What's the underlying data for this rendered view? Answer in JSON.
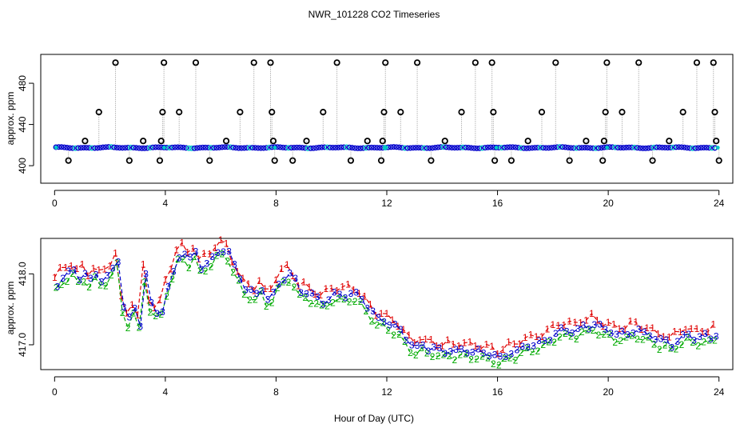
{
  "title": "NWR_101228  CO2 Timeseries",
  "xlabel": "Hour of Day (UTC)",
  "colors": {
    "black": "#000000",
    "blue": "#0000cc",
    "cyan": "#00c8c8",
    "red": "#e00000",
    "green": "#00aa00",
    "dashed_blue": "#0000cc",
    "gray": "#999999"
  },
  "chart_data": [
    {
      "type": "scatter",
      "panel": "top",
      "ylabel": "approx. ppm",
      "xlim": [
        -0.5,
        24.5
      ],
      "ylim": [
        383,
        508
      ],
      "xticks": [
        0,
        4,
        8,
        12,
        16,
        20,
        24
      ],
      "yticks": [
        400,
        440,
        480
      ],
      "baseline_ppm": 417.5,
      "spike_values_ppm": [
        500,
        452,
        424,
        405
      ],
      "spikes": [
        {
          "x": 0.5,
          "y": 405
        },
        {
          "x": 1.1,
          "y": 424
        },
        {
          "x": 1.6,
          "y": 452
        },
        {
          "x": 2.2,
          "y": 500
        },
        {
          "x": 2.7,
          "y": 405
        },
        {
          "x": 3.2,
          "y": 424
        },
        {
          "x": 3.8,
          "y": 405
        },
        {
          "x": 3.85,
          "y": 424
        },
        {
          "x": 3.9,
          "y": 452
        },
        {
          "x": 3.95,
          "y": 500
        },
        {
          "x": 4.5,
          "y": 452
        },
        {
          "x": 5.1,
          "y": 500
        },
        {
          "x": 5.6,
          "y": 405
        },
        {
          "x": 6.2,
          "y": 424
        },
        {
          "x": 6.7,
          "y": 452
        },
        {
          "x": 7.2,
          "y": 500
        },
        {
          "x": 7.8,
          "y": 500
        },
        {
          "x": 7.85,
          "y": 452
        },
        {
          "x": 7.9,
          "y": 424
        },
        {
          "x": 7.95,
          "y": 405
        },
        {
          "x": 8.6,
          "y": 405
        },
        {
          "x": 9.1,
          "y": 424
        },
        {
          "x": 9.7,
          "y": 452
        },
        {
          "x": 10.2,
          "y": 500
        },
        {
          "x": 10.7,
          "y": 405
        },
        {
          "x": 11.3,
          "y": 424
        },
        {
          "x": 11.8,
          "y": 405
        },
        {
          "x": 11.85,
          "y": 424
        },
        {
          "x": 11.9,
          "y": 452
        },
        {
          "x": 11.95,
          "y": 500
        },
        {
          "x": 12.5,
          "y": 452
        },
        {
          "x": 13.1,
          "y": 500
        },
        {
          "x": 13.6,
          "y": 405
        },
        {
          "x": 14.1,
          "y": 424
        },
        {
          "x": 14.7,
          "y": 452
        },
        {
          "x": 15.2,
          "y": 500
        },
        {
          "x": 15.8,
          "y": 500
        },
        {
          "x": 15.85,
          "y": 452
        },
        {
          "x": 15.9,
          "y": 405
        },
        {
          "x": 16.5,
          "y": 405
        },
        {
          "x": 17.1,
          "y": 424
        },
        {
          "x": 17.6,
          "y": 452
        },
        {
          "x": 18.1,
          "y": 500
        },
        {
          "x": 18.6,
          "y": 405
        },
        {
          "x": 19.2,
          "y": 424
        },
        {
          "x": 19.8,
          "y": 405
        },
        {
          "x": 19.85,
          "y": 424
        },
        {
          "x": 19.9,
          "y": 452
        },
        {
          "x": 19.95,
          "y": 500
        },
        {
          "x": 20.5,
          "y": 452
        },
        {
          "x": 21.1,
          "y": 500
        },
        {
          "x": 21.6,
          "y": 405
        },
        {
          "x": 22.2,
          "y": 424
        },
        {
          "x": 22.7,
          "y": 452
        },
        {
          "x": 23.2,
          "y": 500
        },
        {
          "x": 23.8,
          "y": 500
        },
        {
          "x": 23.85,
          "y": 452
        },
        {
          "x": 23.9,
          "y": 424
        },
        {
          "x": 24.0,
          "y": 405
        }
      ]
    },
    {
      "type": "line",
      "panel": "bottom",
      "ylabel": "approx. ppm",
      "xlim": [
        -0.5,
        24.5
      ],
      "ylim": [
        416.65,
        418.5
      ],
      "xticks": [
        0,
        4,
        8,
        12,
        16,
        20,
        24
      ],
      "yticks": [
        417.0,
        418.0
      ],
      "series": [
        {
          "name": "1",
          "marker": "1",
          "color": "#e00000",
          "offset": 0.1
        },
        {
          "name": "2",
          "marker": "2",
          "color": "#00aa00",
          "offset": -0.08
        },
        {
          "name": "3",
          "marker": "3",
          "color": "#0000cc",
          "offset": 0.0
        }
      ],
      "x": [
        0.0,
        0.2,
        0.4,
        0.6,
        0.8,
        1.0,
        1.2,
        1.4,
        1.6,
        1.8,
        2.0,
        2.2,
        2.4,
        2.6,
        2.8,
        3.0,
        3.2,
        3.4,
        3.6,
        3.8,
        4.0,
        4.2,
        4.4,
        4.6,
        4.8,
        5.0,
        5.2,
        5.4,
        5.6,
        5.8,
        6.0,
        6.2,
        6.4,
        6.6,
        6.8,
        7.0,
        7.2,
        7.4,
        7.6,
        7.8,
        8.0,
        8.2,
        8.4,
        8.6,
        8.8,
        9.0,
        9.2,
        9.4,
        9.6,
        9.8,
        10.0,
        10.2,
        10.4,
        10.6,
        10.8,
        11.0,
        11.2,
        11.4,
        11.6,
        11.8,
        12.0,
        12.2,
        12.4,
        12.6,
        12.8,
        13.0,
        13.2,
        13.4,
        13.6,
        13.8,
        14.0,
        14.2,
        14.4,
        14.6,
        14.8,
        15.0,
        15.2,
        15.4,
        15.6,
        15.8,
        16.0,
        16.2,
        16.4,
        16.6,
        16.8,
        17.0,
        17.2,
        17.4,
        17.6,
        17.8,
        18.0,
        18.2,
        18.4,
        18.6,
        18.8,
        19.0,
        19.2,
        19.4,
        19.6,
        19.8,
        20.0,
        20.2,
        20.4,
        20.6,
        20.8,
        21.0,
        21.2,
        21.4,
        21.6,
        21.8,
        22.0,
        22.2,
        22.4,
        22.6,
        22.8,
        23.0,
        23.2,
        23.4,
        23.6,
        23.8
      ],
      "y": [
        417.85,
        417.95,
        418.0,
        418.05,
        417.95,
        418.0,
        417.9,
        418.0,
        417.92,
        417.95,
        418.05,
        418.2,
        417.55,
        417.35,
        417.5,
        417.3,
        418.0,
        417.55,
        417.45,
        417.5,
        417.8,
        418.0,
        418.25,
        418.3,
        418.2,
        418.3,
        418.1,
        418.15,
        418.2,
        418.3,
        418.35,
        418.3,
        418.1,
        417.95,
        417.8,
        417.75,
        417.7,
        417.8,
        417.65,
        417.7,
        417.85,
        417.95,
        418.0,
        417.9,
        417.75,
        417.75,
        417.7,
        417.65,
        417.6,
        417.65,
        417.7,
        417.7,
        417.7,
        417.72,
        417.7,
        417.65,
        417.55,
        417.45,
        417.35,
        417.35,
        417.3,
        417.25,
        417.2,
        417.1,
        417.0,
        416.95,
        417.0,
        416.95,
        416.95,
        416.92,
        416.9,
        416.93,
        416.9,
        416.92,
        416.92,
        416.9,
        416.9,
        416.88,
        416.88,
        416.85,
        416.8,
        416.85,
        416.9,
        416.9,
        416.95,
        417.0,
        417.0,
        417.02,
        417.05,
        417.1,
        417.15,
        417.2,
        417.2,
        417.2,
        417.2,
        417.25,
        417.25,
        417.3,
        417.25,
        417.2,
        417.2,
        417.15,
        417.15,
        417.15,
        417.2,
        417.2,
        417.15,
        417.15,
        417.1,
        417.05,
        417.05,
        417.0,
        417.05,
        417.1,
        417.15,
        417.1,
        417.1,
        417.12,
        417.1,
        417.15
      ]
    }
  ]
}
